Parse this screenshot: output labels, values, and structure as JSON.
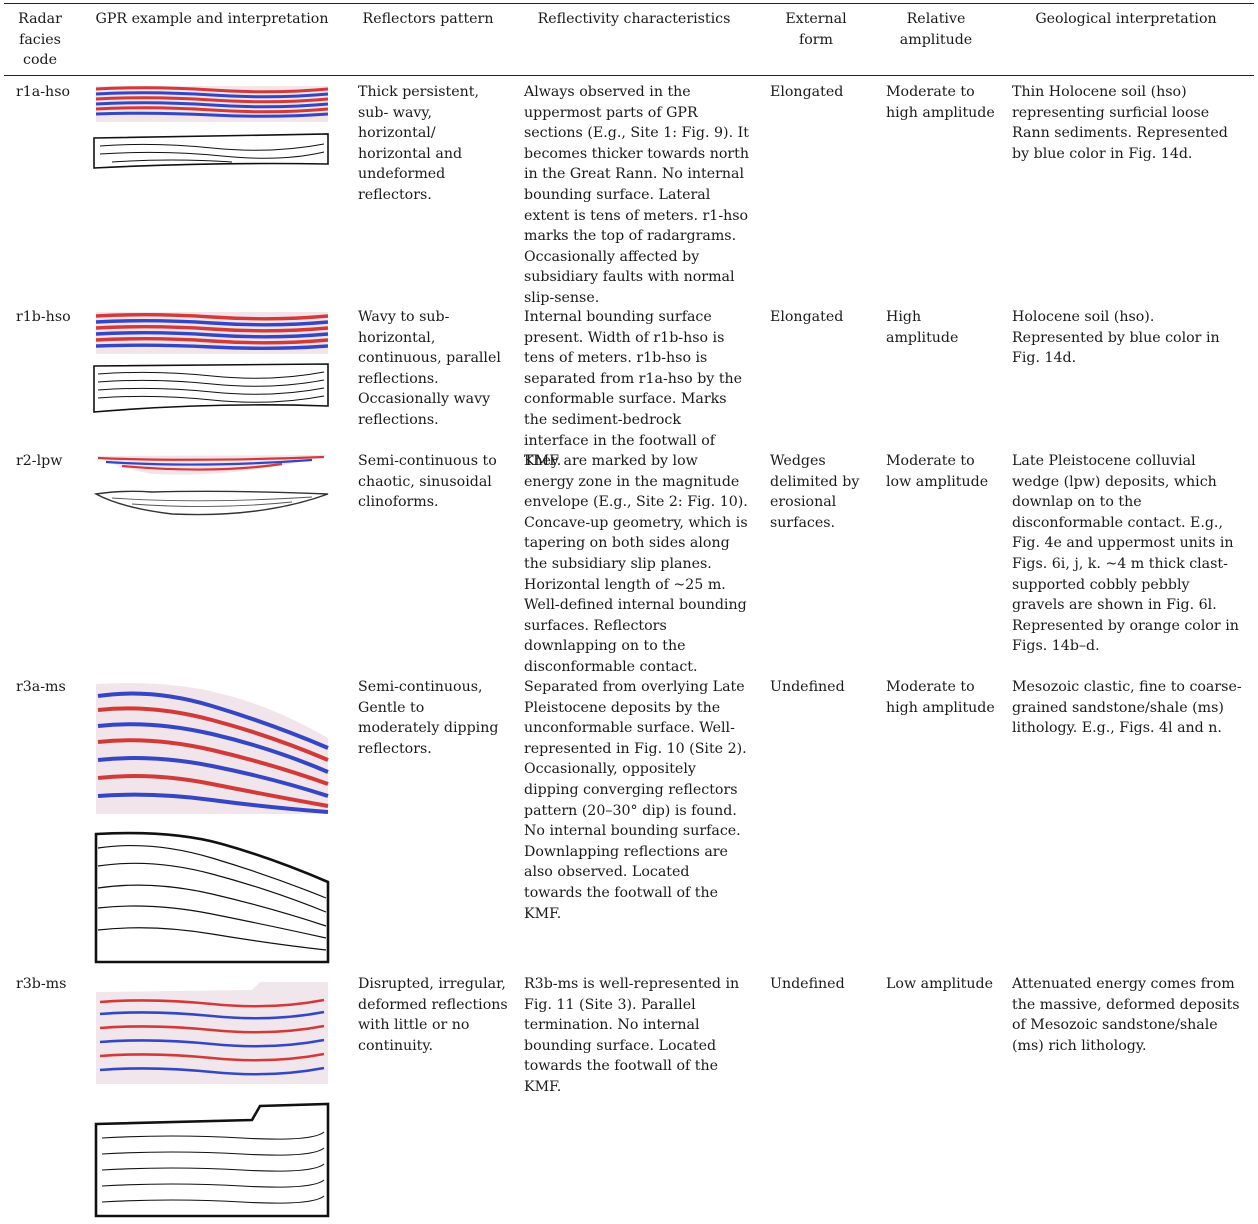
{
  "headers": {
    "code": "Radar facies code",
    "gpr": "GPR example and interpretation",
    "pattern": "Reflectors pattern",
    "reflectivity": "Reflectivity characteristics",
    "form": "External form",
    "amplitude": "Relative amplitude",
    "geology": "Geological interpretation"
  },
  "rows": [
    {
      "code": "r1a-hso",
      "pattern": "Thick persistent, sub- wavy, horizontal/ horizontal and undeformed reflectors.",
      "reflectivity": "Always observed in the uppermost parts of GPR sections (E.g., Site 1: Fig. 9). It becomes thicker towards north in the Great Rann. No internal bounding surface. Lateral extent is tens of meters. r1-hso marks the top of radargrams. Occasionally affected by subsidiary faults with normal slip-sense.",
      "form": "Elongated",
      "amplitude": "Moderate to high amplitude",
      "geology": "Thin Holocene soil (hso) representing surficial loose Rann sediments. Represented by blue color in Fig. 14d."
    },
    {
      "code": "r1b-hso",
      "pattern": "Wavy to sub-horizontal, continuous, parallel reflections. Occasionally wavy reflections.",
      "reflectivity": "Internal bounding surface present. Width of r1b-hso is tens of meters. r1b-hso is separated from r1a-hso by the conformable surface. Marks the sediment-bedrock interface in the footwall of KMF.",
      "form": "Elongated",
      "amplitude": "High amplitude",
      "geology": "Holocene soil (hso). Represented by blue color in Fig. 14d."
    },
    {
      "code": "r2-lpw",
      "pattern": "Semi-continuous to chaotic, sinusoidal clinoforms.",
      "reflectivity": "They are marked by low energy zone in the magnitude envelope (E.g., Site 2: Fig. 10). Concave-up geometry, which is tapering on both sides along the subsidiary slip planes. Horizontal length of ~25 m. Well-defined internal bounding surfaces. Reflectors downlapping on to the disconformable contact.",
      "form": "Wedges delimited by erosional surfaces.",
      "amplitude": "Moderate to low amplitude",
      "geology": "Late Pleistocene colluvial wedge (lpw) deposits, which downlap on to the disconformable contact. E.g., Fig. 4e and uppermost units in Figs. 6i, j, k. ~4 m thick clast-supported cobbly pebbly gravels are shown in Fig. 6l. Represented by orange color in Figs. 14b–d."
    },
    {
      "code": "r3a-ms",
      "pattern": "Semi-continuous, Gentle to moderately dipping reflectors.",
      "reflectivity": "Separated from overlying Late Pleistocene deposits by the unconformable surface. Well-represented in Fig. 10 (Site 2). Occasionally, oppositely dipping converging reflectors pattern (20–30° dip) is found. No internal bounding surface. Downlapping reflections are also observed. Located towards the footwall of the KMF.",
      "form": "Undefined",
      "amplitude": "Moderate to high amplitude",
      "geology": "Mesozoic clastic, fine to coarse-grained sandstone/shale (ms) lithology. E.g., Figs. 4l and n."
    },
    {
      "code": "r3b-ms",
      "pattern": "Disrupted, irregular, deformed reflections with little or no continuity.",
      "reflectivity": "R3b-ms is well-represented in Fig. 11 (Site 3). Parallel termination. No internal bounding surface. Located towards the footwall of the KMF.",
      "form": "Undefined",
      "amplitude": "Low amplitude",
      "geology": "Attenuated energy comes from the massive, deformed deposits of Mesozoic sandstone/shale (ms) rich lithology."
    }
  ]
}
